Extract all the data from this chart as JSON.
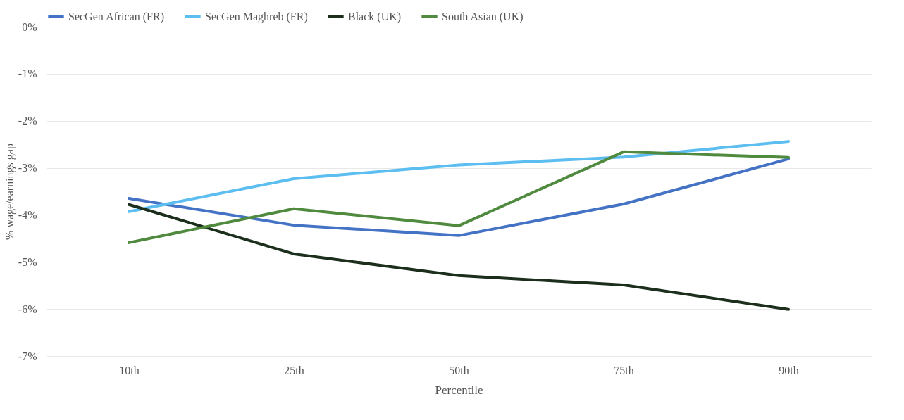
{
  "chart_data": {
    "type": "line",
    "xlabel": "Percentile",
    "ylabel": "% wage/earnings gap",
    "categories": [
      "10th",
      "25th",
      "50th",
      "75th",
      "90th"
    ],
    "series": [
      {
        "name": "SecGen African (FR)",
        "color": "#4472c4",
        "values": [
          -3.65,
          -4.22,
          -4.44,
          -3.77,
          -2.81
        ]
      },
      {
        "name": "SecGen Maghreb (FR)",
        "color": "#5bbdf0",
        "values": [
          -3.93,
          -3.23,
          -2.94,
          -2.77,
          -2.44
        ]
      },
      {
        "name": "Black (UK)",
        "color": "#1c2e1c",
        "values": [
          -3.78,
          -4.83,
          -5.29,
          -5.49,
          -6.01
        ]
      },
      {
        "name": "South Asian (UK)",
        "color": "#4f8a3e",
        "values": [
          -4.59,
          -3.87,
          -4.23,
          -2.66,
          -2.78
        ]
      }
    ],
    "ylim": [
      -7,
      0
    ],
    "yticks": [
      {
        "value": 0,
        "label": "0%"
      },
      {
        "value": -1,
        "label": "-1%"
      },
      {
        "value": -2,
        "label": "-2%"
      },
      {
        "value": -3,
        "label": "-3%"
      },
      {
        "value": -4,
        "label": "-4%"
      },
      {
        "value": -5,
        "label": "-5%"
      },
      {
        "value": -6,
        "label": "-6%"
      },
      {
        "value": -7,
        "label": "-7%"
      }
    ],
    "grid": "y",
    "legend": "top",
    "marker": "none",
    "line_style": "solid"
  }
}
